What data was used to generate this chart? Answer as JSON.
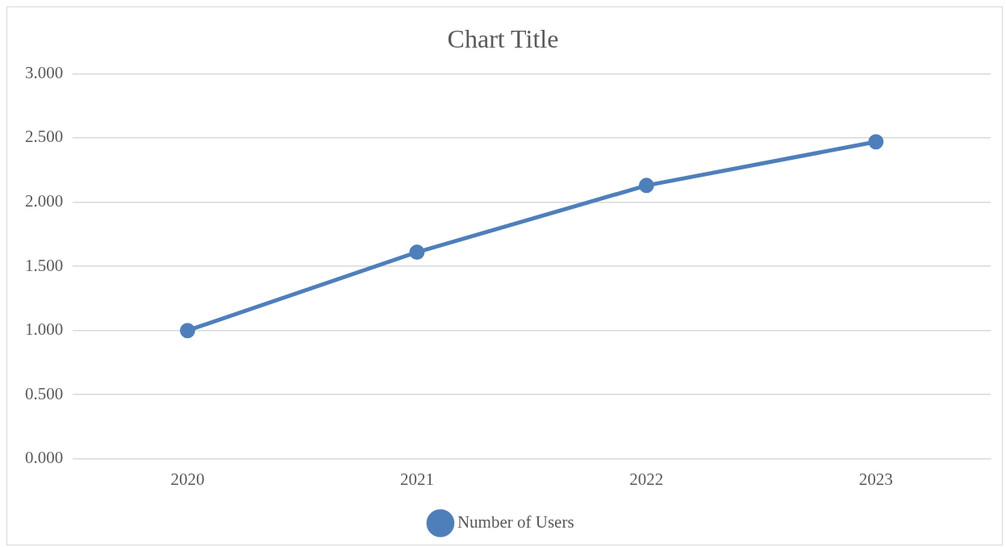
{
  "chart_data": {
    "type": "line",
    "title": "Chart Title",
    "categories": [
      "2020",
      "2021",
      "2022",
      "2023"
    ],
    "series": [
      {
        "name": "Number of Users",
        "color": "#4f7fba",
        "values": [
          1.0,
          1.61,
          2.13,
          2.47
        ]
      }
    ],
    "ylim": [
      0,
      3
    ],
    "yticks": [
      {
        "value": 0,
        "label": "0.000"
      },
      {
        "value": 0.5,
        "label": "0.500"
      },
      {
        "value": 1,
        "label": "1.000"
      },
      {
        "value": 1.5,
        "label": "1.500"
      },
      {
        "value": 2,
        "label": "2.000"
      },
      {
        "value": 2.5,
        "label": "2.500"
      },
      {
        "value": 3,
        "label": "3.000"
      }
    ],
    "grid": "y",
    "legend": "bottom",
    "marker": "circle",
    "line_style": "solid"
  }
}
